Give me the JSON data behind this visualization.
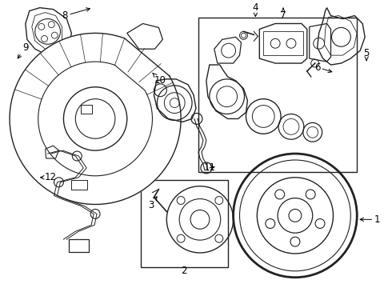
{
  "background": "#ffffff",
  "line_color": "#222222",
  "label_fontsize": 8.5,
  "fig_w": 4.9,
  "fig_h": 3.6,
  "dpi": 100
}
